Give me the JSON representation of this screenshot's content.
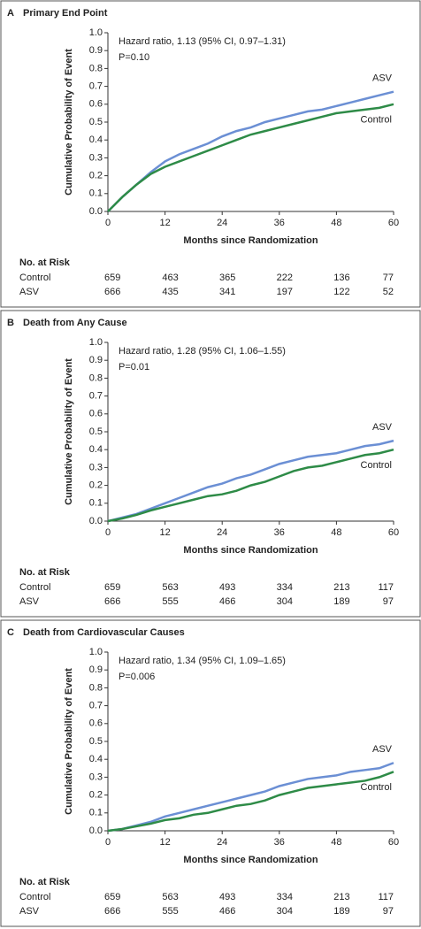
{
  "chart_data": [
    {
      "type": "line",
      "label": "A",
      "title": "Primary End Point",
      "annotations": [
        "Hazard ratio, 1.13 (95% CI, 0.97–1.31)",
        "P=0.10"
      ],
      "x_label": "Months since Randomization",
      "y_label": "Cumulative Probability of Event",
      "x": [
        0,
        3,
        6,
        9,
        12,
        15,
        18,
        21,
        24,
        27,
        30,
        33,
        36,
        39,
        42,
        45,
        48,
        51,
        54,
        57,
        60
      ],
      "series": [
        {
          "name": "ASV",
          "color": "#6b8fd4",
          "values": [
            0,
            0.08,
            0.15,
            0.22,
            0.28,
            0.32,
            0.35,
            0.38,
            0.42,
            0.45,
            0.47,
            0.5,
            0.52,
            0.54,
            0.56,
            0.57,
            0.59,
            0.61,
            0.63,
            0.65,
            0.67
          ]
        },
        {
          "name": "Control",
          "color": "#2e8b47",
          "values": [
            0,
            0.08,
            0.15,
            0.21,
            0.25,
            0.28,
            0.31,
            0.34,
            0.37,
            0.4,
            0.43,
            0.45,
            0.47,
            0.49,
            0.51,
            0.53,
            0.55,
            0.56,
            0.57,
            0.58,
            0.6
          ]
        }
      ],
      "xlim": [
        0,
        60
      ],
      "xticks": [
        0,
        12,
        24,
        36,
        48,
        60
      ],
      "ylim": [
        0,
        1
      ],
      "yticks": [
        {
          "value": 0,
          "label": "0.0"
        },
        0.1,
        0.2,
        0.3,
        0.4,
        0.5,
        0.6,
        0.7,
        0.8,
        0.9,
        {
          "value": 1,
          "label": "1.0"
        }
      ],
      "risk_table": {
        "title": "No. at Risk",
        "rows": [
          {
            "name": "Control",
            "values": [
              659,
              463,
              365,
              222,
              136,
              77
            ]
          },
          {
            "name": "ASV",
            "values": [
              666,
              435,
              341,
              197,
              122,
              52
            ]
          }
        ]
      }
    },
    {
      "type": "line",
      "label": "B",
      "title": "Death from Any Cause",
      "annotations": [
        "Hazard ratio, 1.28 (95% CI, 1.06–1.55)",
        "P=0.01"
      ],
      "x_label": "Months since Randomization",
      "y_label": "Cumulative Probability of Event",
      "x": [
        0,
        3,
        6,
        9,
        12,
        15,
        18,
        21,
        24,
        27,
        30,
        33,
        36,
        39,
        42,
        45,
        48,
        51,
        54,
        57,
        60
      ],
      "series": [
        {
          "name": "ASV",
          "color": "#6b8fd4",
          "values": [
            0,
            0.02,
            0.04,
            0.07,
            0.1,
            0.13,
            0.16,
            0.19,
            0.21,
            0.24,
            0.26,
            0.29,
            0.32,
            0.34,
            0.36,
            0.37,
            0.38,
            0.4,
            0.42,
            0.43,
            0.45
          ]
        },
        {
          "name": "Control",
          "color": "#2e8b47",
          "values": [
            0,
            0.015,
            0.035,
            0.06,
            0.08,
            0.1,
            0.12,
            0.14,
            0.15,
            0.17,
            0.2,
            0.22,
            0.25,
            0.28,
            0.3,
            0.31,
            0.33,
            0.35,
            0.37,
            0.38,
            0.4
          ]
        }
      ],
      "xlim": [
        0,
        60
      ],
      "xticks": [
        0,
        12,
        24,
        36,
        48,
        60
      ],
      "ylim": [
        0,
        1
      ],
      "yticks": [
        {
          "value": 0,
          "label": "0.0"
        },
        0.1,
        0.2,
        0.3,
        0.4,
        0.5,
        0.6,
        0.7,
        0.8,
        0.9,
        {
          "value": 1,
          "label": "1.0"
        }
      ],
      "risk_table": {
        "title": "No. at Risk",
        "rows": [
          {
            "name": "Control",
            "values": [
              659,
              563,
              493,
              334,
              213,
              117
            ]
          },
          {
            "name": "ASV",
            "values": [
              666,
              555,
              466,
              304,
              189,
              97
            ]
          }
        ]
      }
    },
    {
      "type": "line",
      "label": "C",
      "title": "Death from Cardiovascular Causes",
      "annotations": [
        "Hazard ratio, 1.34 (95% CI, 1.09–1.65)",
        "P=0.006"
      ],
      "x_label": "Months since Randomization",
      "y_label": "Cumulative Probability of Event",
      "x": [
        0,
        3,
        6,
        9,
        12,
        15,
        18,
        21,
        24,
        27,
        30,
        33,
        36,
        39,
        42,
        45,
        48,
        51,
        54,
        57,
        60
      ],
      "series": [
        {
          "name": "ASV",
          "color": "#6b8fd4",
          "values": [
            0,
            0.01,
            0.03,
            0.05,
            0.08,
            0.1,
            0.12,
            0.14,
            0.16,
            0.18,
            0.2,
            0.22,
            0.25,
            0.27,
            0.29,
            0.3,
            0.31,
            0.33,
            0.34,
            0.35,
            0.38
          ]
        },
        {
          "name": "Control",
          "color": "#2e8b47",
          "values": [
            0,
            0.01,
            0.025,
            0.04,
            0.06,
            0.07,
            0.09,
            0.1,
            0.12,
            0.14,
            0.15,
            0.17,
            0.2,
            0.22,
            0.24,
            0.25,
            0.26,
            0.27,
            0.28,
            0.3,
            0.33
          ]
        }
      ],
      "xlim": [
        0,
        60
      ],
      "xticks": [
        0,
        12,
        24,
        36,
        48,
        60
      ],
      "ylim": [
        0,
        1
      ],
      "yticks": [
        {
          "value": 0,
          "label": "0.0"
        },
        0.1,
        0.2,
        0.3,
        0.4,
        0.5,
        0.6,
        0.7,
        0.8,
        0.9,
        {
          "value": 1,
          "label": "1.0"
        }
      ],
      "risk_table": {
        "title": "No. at Risk",
        "rows": [
          {
            "name": "Control",
            "values": [
              659,
              563,
              493,
              334,
              213,
              117
            ]
          },
          {
            "name": "ASV",
            "values": [
              666,
              555,
              466,
              304,
              189,
              97
            ]
          }
        ]
      }
    }
  ]
}
